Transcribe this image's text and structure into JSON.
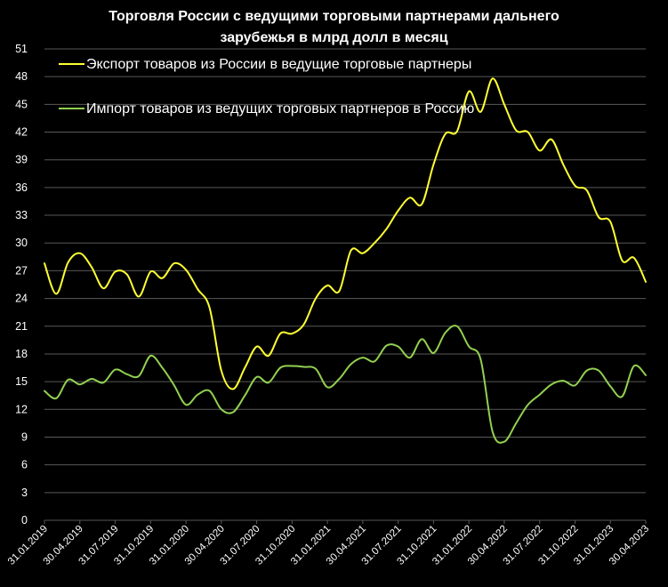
{
  "title_line1": "Торговля России с ведущими торговыми партнерами дальнего",
  "title_line2": "зарубежья в млрд долл в месяц",
  "chart_data": {
    "type": "line",
    "title": "Торговля России с ведущими торговыми партнерами дальнего зарубежья в млрд долл в месяц",
    "xlabel": "",
    "ylabel": "",
    "ylim": [
      0,
      51
    ],
    "y_ticks": [
      0,
      3,
      6,
      9,
      12,
      15,
      18,
      21,
      24,
      27,
      30,
      33,
      36,
      39,
      42,
      45,
      48,
      51
    ],
    "grid": true,
    "legend_position": "top-left",
    "background": "#000000",
    "x_tick_labels": [
      "31.01.2019",
      "30.04.2019",
      "31.07.2019",
      "31.10.2019",
      "31.01.2020",
      "30.04.2020",
      "31.07.2020",
      "31.10.2020",
      "31.01.2021",
      "30.04.2021",
      "31.07.2021",
      "31.10.2021",
      "31.01.2022",
      "30.04.2022",
      "31.07.2022",
      "31.10.2022",
      "31.01.2023",
      "30.04.2023"
    ],
    "x": [
      "31.01.2019",
      "28.02.2019",
      "31.03.2019",
      "30.04.2019",
      "31.05.2019",
      "30.06.2019",
      "31.07.2019",
      "31.08.2019",
      "30.09.2019",
      "31.10.2019",
      "30.11.2019",
      "31.12.2019",
      "31.01.2020",
      "29.02.2020",
      "31.03.2020",
      "30.04.2020",
      "31.05.2020",
      "30.06.2020",
      "31.07.2020",
      "31.08.2020",
      "30.09.2020",
      "31.10.2020",
      "30.11.2020",
      "31.12.2020",
      "31.01.2021",
      "28.02.2021",
      "31.03.2021",
      "30.04.2021",
      "31.05.2021",
      "30.06.2021",
      "31.07.2021",
      "31.08.2021",
      "30.09.2021",
      "31.10.2021",
      "30.11.2021",
      "31.12.2021",
      "31.01.2022",
      "28.02.2022",
      "31.03.2022",
      "30.04.2022",
      "31.05.2022",
      "30.06.2022",
      "31.07.2022",
      "31.08.2022",
      "30.09.2022",
      "31.10.2022",
      "30.11.2022",
      "31.12.2022",
      "31.01.2023",
      "28.02.2023",
      "31.03.2023",
      "30.04.2023"
    ],
    "series": [
      {
        "name": "Экспорт товаров из России в ведущие торговые партнеры",
        "color": "#ffff33",
        "values": [
          27.8,
          24.5,
          27.9,
          28.9,
          27.4,
          25.1,
          26.9,
          26.6,
          24.2,
          26.9,
          26.2,
          27.8,
          27.1,
          25.0,
          23.0,
          16.2,
          14.2,
          16.5,
          18.8,
          17.8,
          20.2,
          20.2,
          21.2,
          24.0,
          25.4,
          24.8,
          29.2,
          28.9,
          30.0,
          31.5,
          33.5,
          34.9,
          34.2,
          38.5,
          41.8,
          42.1,
          46.4,
          44.2,
          47.8,
          45.0,
          42.2,
          42.0,
          40.0,
          41.2,
          38.5,
          36.2,
          35.7,
          32.8,
          32.3,
          28.1,
          28.4,
          25.8
        ]
      },
      {
        "name": "Импорт товаров из ведущих торговых партнеров в Россию",
        "color": "#92d050",
        "values": [
          14.0,
          13.2,
          15.2,
          14.7,
          15.3,
          14.9,
          16.3,
          15.8,
          15.6,
          17.8,
          16.5,
          14.6,
          12.5,
          13.6,
          14.0,
          12.0,
          11.7,
          13.5,
          15.5,
          14.9,
          16.5,
          16.7,
          16.6,
          16.4,
          14.4,
          15.3,
          16.9,
          17.6,
          17.2,
          18.9,
          18.8,
          17.6,
          19.6,
          18.1,
          20.3,
          21.0,
          18.8,
          17.4,
          9.6,
          8.5,
          10.5,
          12.5,
          13.6,
          14.7,
          15.1,
          14.6,
          16.2,
          16.2,
          14.5,
          13.4,
          16.7,
          15.7
        ]
      }
    ]
  }
}
